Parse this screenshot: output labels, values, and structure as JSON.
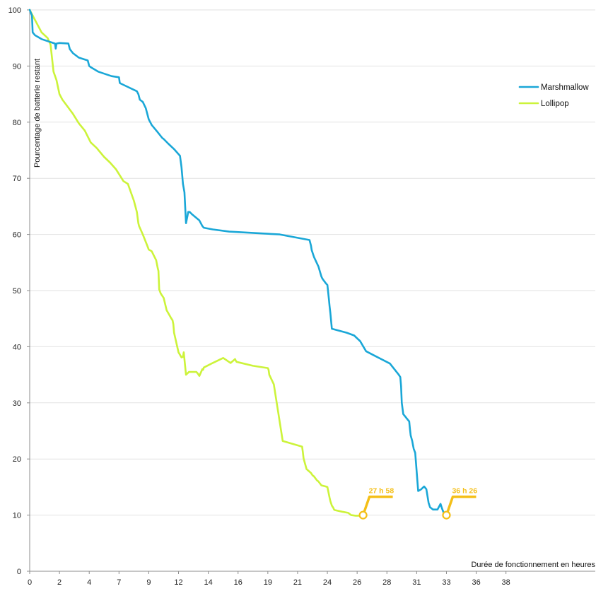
{
  "chart_data": {
    "type": "line",
    "title": "",
    "xlabel": "Durée de fonctionnement en heures",
    "ylabel": "Pourcentage de batterie restant",
    "xlim": [
      0,
      38
    ],
    "ylim": [
      0,
      100
    ],
    "x_ticks": [
      {
        "value": 0,
        "label": "0"
      },
      {
        "value": 2,
        "label": "2"
      },
      {
        "value": 4,
        "label": "4"
      },
      {
        "value": 6,
        "label": "7"
      },
      {
        "value": 8,
        "label": "9"
      },
      {
        "value": 10,
        "label": "12"
      },
      {
        "value": 12,
        "label": "14"
      },
      {
        "value": 14,
        "label": "16"
      },
      {
        "value": 16,
        "label": "19"
      },
      {
        "value": 18,
        "label": "21"
      },
      {
        "value": 20,
        "label": "24"
      },
      {
        "value": 22,
        "label": "26"
      },
      {
        "value": 24,
        "label": "28"
      },
      {
        "value": 26,
        "label": "31"
      },
      {
        "value": 28,
        "label": "33"
      },
      {
        "value": 30,
        "label": "36"
      },
      {
        "value": 32,
        "label": "38"
      }
    ],
    "y_ticks": [
      0,
      10,
      20,
      30,
      40,
      50,
      60,
      70,
      80,
      90,
      100
    ],
    "grid": {
      "horizontal": true,
      "vertical": false
    },
    "legend_position": "right",
    "colors": {
      "marshmallow": "#1aa7d7",
      "lollipop": "#ccf33a",
      "annotation": "#f4bf17",
      "grid": "#e2e2e2",
      "axis": "#8c8c8c"
    },
    "series": [
      {
        "name": "Marshmallow",
        "x": [
          0,
          0.15,
          0.2,
          0.35,
          0.8,
          1.7,
          1.75,
          1.8,
          2.0,
          2.6,
          2.7,
          2.9,
          3.3,
          3.9,
          4.0,
          4.1,
          4.6,
          5.5,
          6.0,
          6.05,
          6.1,
          6.5,
          7.2,
          7.3,
          7.4,
          7.6,
          7.8,
          8.0,
          8.2,
          8.6,
          8.9,
          9.0,
          9.3,
          9.7,
          10.1,
          10.2,
          10.3,
          10.4,
          10.5,
          10.6,
          10.65,
          10.75,
          10.9,
          11.4,
          11.6,
          11.7,
          12.3,
          13.4,
          16.8,
          18.8,
          18.9,
          18.95,
          19.1,
          19.4,
          19.6,
          19.65,
          19.7,
          19.9,
          20.0,
          20.1,
          20.15,
          20.2,
          20.3,
          21.3,
          21.8,
          22.2,
          22.6,
          23.1,
          24.2,
          24.8,
          24.9,
          24.95,
          25.0,
          25.1,
          25.4,
          25.5,
          25.55,
          25.6,
          25.7,
          25.75,
          25.8,
          25.9,
          26.1,
          26.3,
          26.5,
          26.6,
          26.65,
          26.8,
          26.9,
          27.1,
          27.4,
          27.6,
          27.7,
          27.8,
          28.0
        ],
        "y": [
          100,
          99,
          96,
          95.5,
          94.8,
          94,
          93.1,
          94,
          94.1,
          94,
          93,
          92.3,
          91.5,
          91,
          90,
          89.8,
          89,
          88.2,
          88,
          87,
          86.9,
          86.4,
          85.5,
          85,
          84,
          83.6,
          82.5,
          80.5,
          79.5,
          78.2,
          77.2,
          77,
          76.2,
          75.2,
          74,
          72,
          69,
          67.5,
          62,
          63.3,
          64,
          64,
          63.6,
          62.5,
          61.5,
          61.2,
          60.9,
          60.5,
          60,
          59,
          58,
          57.2,
          56,
          54.3,
          52.5,
          52.2,
          52,
          51.3,
          51,
          48.5,
          47.2,
          46,
          43.2,
          42.5,
          42,
          41,
          39.2,
          38.5,
          37,
          35,
          34.6,
          33,
          30,
          28,
          27,
          26.7,
          25.3,
          24.2,
          23.2,
          22.5,
          21.8,
          21.1,
          14.3,
          14.6,
          15.1,
          14.8,
          14.6,
          12.2,
          11.4,
          11,
          11,
          12,
          11.2,
          10.5,
          10
        ]
      },
      {
        "name": "Lollipop",
        "x": [
          0,
          0.8,
          1.2,
          1.4,
          1.6,
          1.8,
          2.0,
          2.2,
          2.4,
          2.9,
          3.3,
          3.7,
          4.1,
          4.5,
          5.0,
          5.4,
          5.8,
          6.3,
          6.6,
          7.0,
          7.2,
          7.3,
          7.35,
          7.6,
          7.9,
          8.0,
          8.2,
          8.5,
          8.6,
          8.65,
          8.7,
          8.8,
          8.85,
          9.0,
          9.2,
          9.5,
          9.6,
          9.65,
          9.7,
          10.0,
          10.2,
          10.3,
          10.35,
          10.5,
          10.7,
          11.2,
          11.3,
          11.35,
          11.4,
          11.6,
          11.65,
          11.7,
          12.3,
          13.0,
          13.5,
          13.8,
          13.85,
          13.9,
          15.0,
          16.0,
          16.05,
          16.1,
          16.4,
          17.0,
          18.3,
          18.35,
          18.4,
          18.6,
          18.9,
          19.0,
          19.1,
          19.3,
          19.35,
          19.4,
          19.6,
          19.9,
          20.0,
          20.15,
          20.2,
          20.3,
          20.4,
          20.45,
          20.5,
          21.0,
          21.4,
          21.5,
          21.6,
          21.9,
          22.1,
          22.2,
          22.4
        ],
        "y": [
          100,
          96,
          95,
          93.8,
          89,
          87.5,
          85,
          84,
          83.3,
          81.5,
          79.8,
          78.5,
          76.4,
          75.4,
          73.8,
          72.8,
          71.6,
          69.5,
          69,
          66,
          64,
          62,
          61.5,
          60,
          58,
          57.3,
          57,
          55.4,
          54,
          53.5,
          50.2,
          49.5,
          49.3,
          48.7,
          46.5,
          45.1,
          44.7,
          44,
          42.5,
          39,
          38.1,
          38.2,
          39,
          35,
          35.5,
          35.5,
          35.2,
          35,
          34.8,
          36,
          35.9,
          36.3,
          37.1,
          38,
          37.1,
          37.8,
          37.5,
          37.3,
          36.6,
          36.2,
          35.9,
          35,
          33.3,
          23.2,
          22.2,
          21.3,
          20.1,
          18.2,
          17.5,
          17.1,
          16.9,
          16.2,
          16.1,
          16,
          15.3,
          15.1,
          15,
          13.1,
          12.5,
          11.7,
          11.3,
          11,
          10.9,
          10.6,
          10.4,
          10.2,
          10,
          9.9,
          9.9,
          10,
          10
        ]
      }
    ],
    "annotations": [
      {
        "label": "27 h 58",
        "x": 22.4,
        "y": 10
      },
      {
        "label": "36 h 26",
        "x": 28.0,
        "y": 10
      }
    ]
  }
}
